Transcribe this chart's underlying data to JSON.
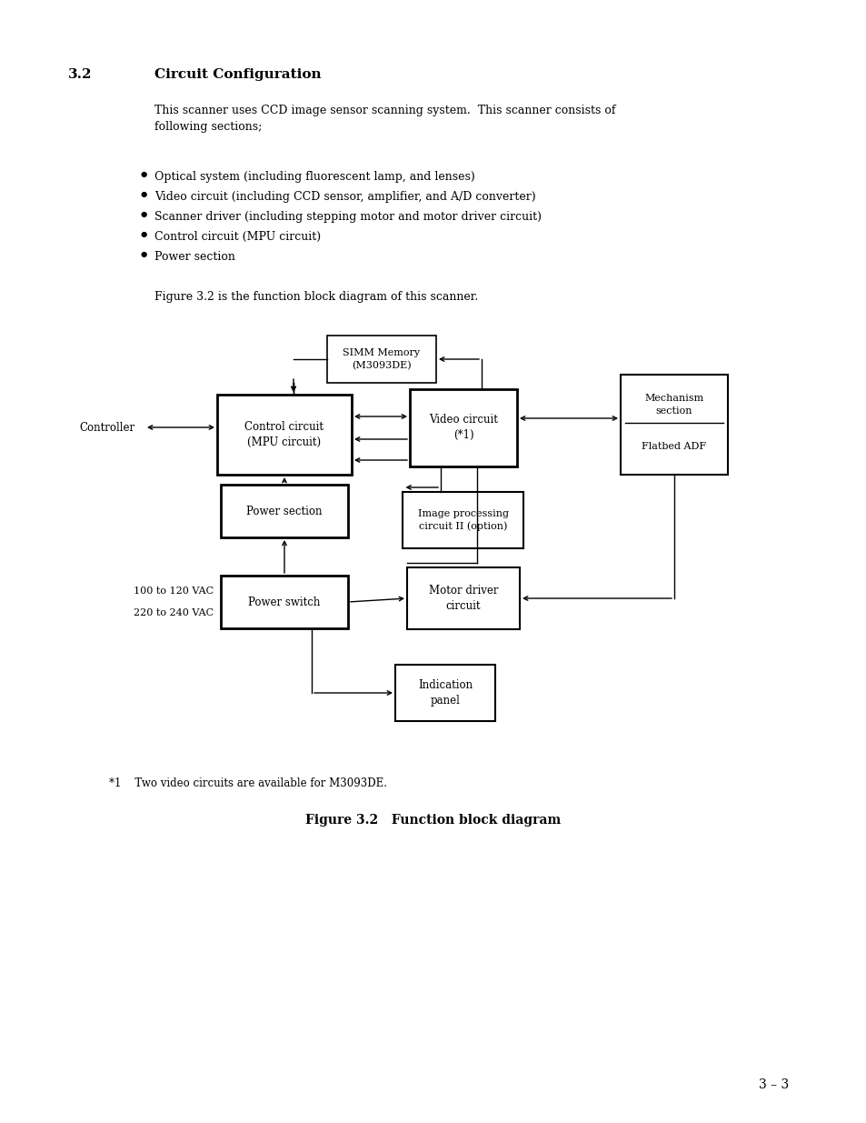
{
  "bg_color": "#ffffff",
  "heading_num": "3.2",
  "heading_text": "Circuit Configuration",
  "body_text": "This scanner uses CCD image sensor scanning system.  This scanner consists of\nfollowing sections;",
  "bullets": [
    "Optical system (including fluorescent lamp, and lenses)",
    "Video circuit (including CCD sensor, amplifier, and A/D converter)",
    "Scanner driver (including stepping motor and motor driver circuit)",
    "Control circuit (MPU circuit)",
    "Power section"
  ],
  "fig_intro": "Figure 3.2 is the function block diagram of this scanner.",
  "footnote": "*1    Two video circuits are available for M3093DE.",
  "fig_caption": "Figure 3.2   Function block diagram",
  "page_number": "3 – 3"
}
